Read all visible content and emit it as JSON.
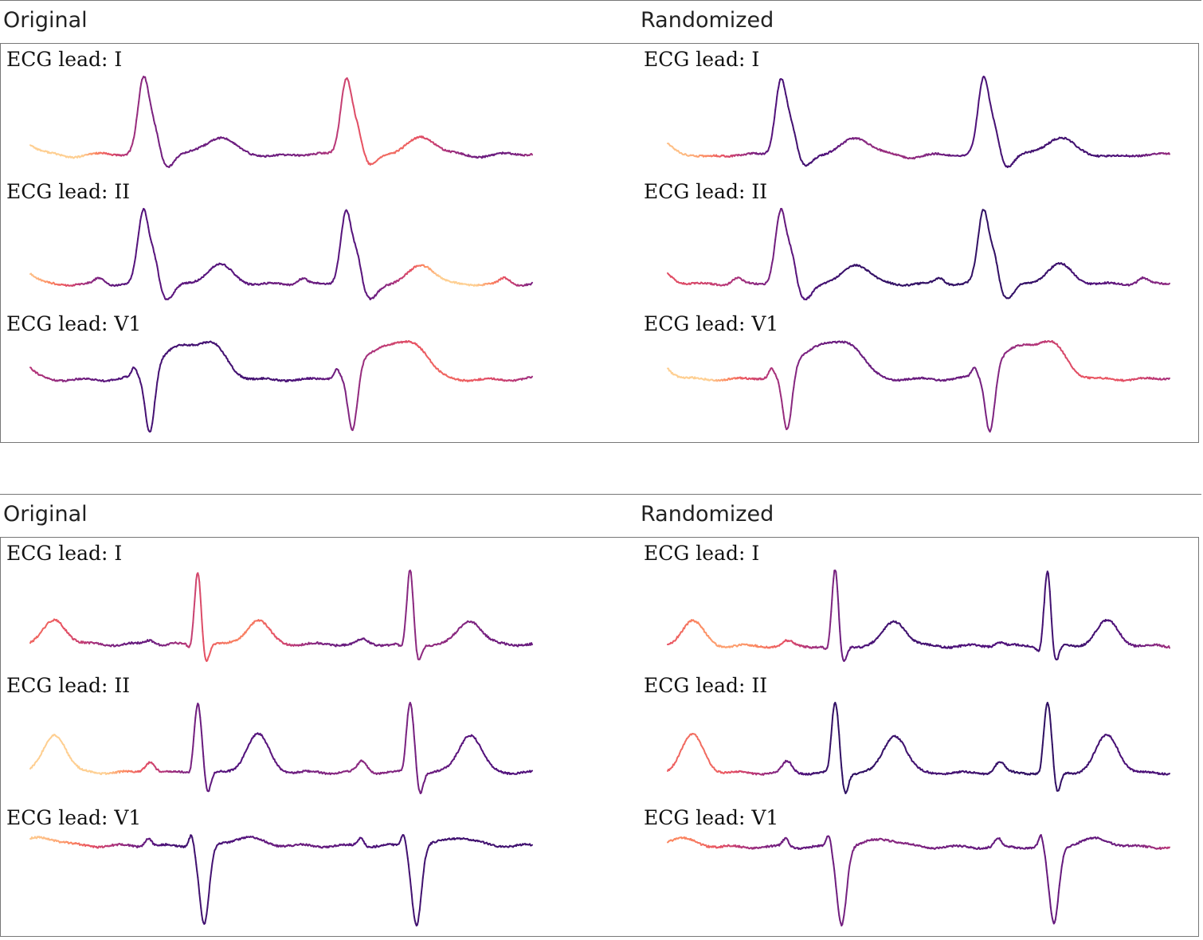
{
  "chart_data": [
    {
      "type": "line",
      "panel_title": "Original",
      "example": 1,
      "colormap": "magma",
      "leads": [
        "ECG lead: I",
        "ECG lead: II",
        "ECG lead: V1"
      ]
    },
    {
      "type": "line",
      "panel_title": "Randomized",
      "example": 1,
      "colormap": "magma",
      "leads": [
        "ECG lead: I",
        "ECG lead: II",
        "ECG lead: V1"
      ]
    },
    {
      "type": "line",
      "panel_title": "Original",
      "example": 2,
      "colormap": "magma",
      "leads": [
        "ECG lead: I",
        "ECG lead: II",
        "ECG lead: V1"
      ]
    },
    {
      "type": "line",
      "panel_title": "Randomized",
      "example": 2,
      "colormap": "magma",
      "leads": [
        "ECG lead: I",
        "ECG lead: II",
        "ECG lead: V1"
      ]
    }
  ],
  "colors": {
    "frame": "#777777",
    "colormap_stops": [
      "#0b0924",
      "#2c1160",
      "#51127c",
      "#822681",
      "#b73779",
      "#e75263",
      "#fc8961",
      "#fecf92"
    ]
  }
}
